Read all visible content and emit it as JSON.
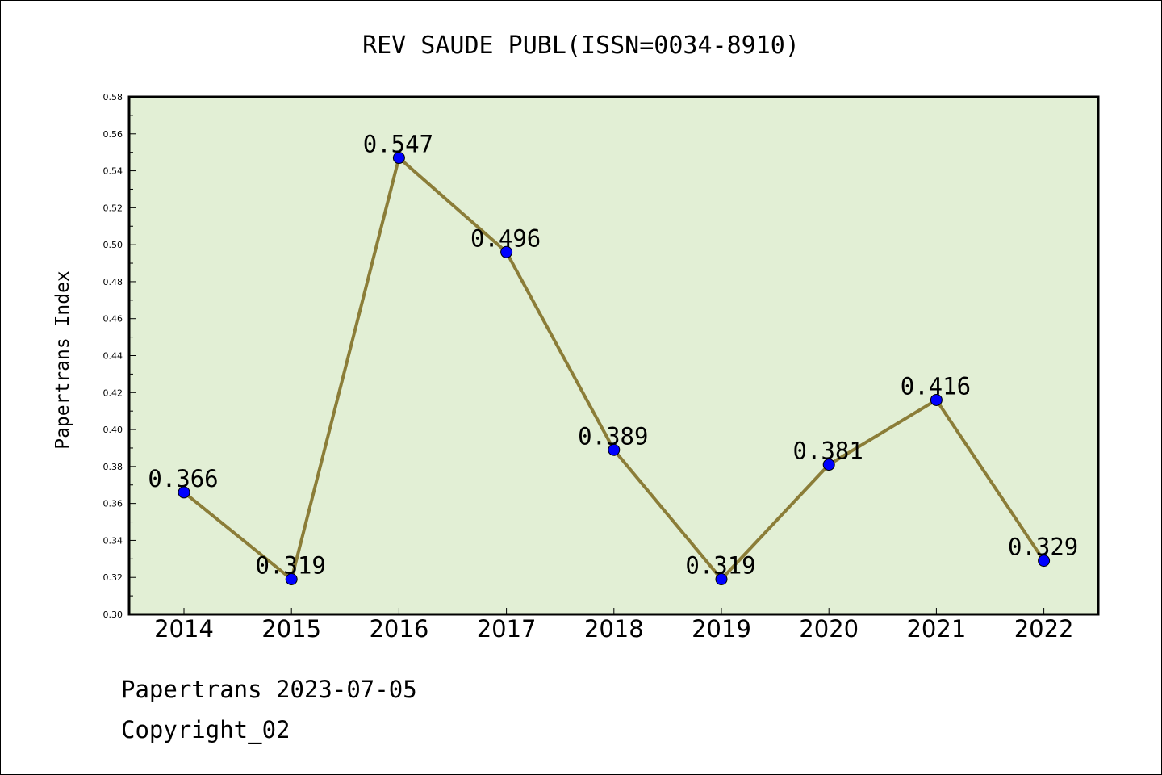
{
  "chart_data": {
    "type": "line",
    "title": "REV SAUDE PUBL(ISSN=0034-8910)",
    "xlabel": "",
    "ylabel": "Papertrans Index",
    "categories": [
      "2014",
      "2015",
      "2016",
      "2017",
      "2018",
      "2019",
      "2020",
      "2021",
      "2022"
    ],
    "series": [
      {
        "values": [
          0.366,
          0.319,
          0.547,
          0.496,
          0.389,
          0.319,
          0.381,
          0.416,
          0.329
        ]
      }
    ],
    "data_labels": [
      "0.366",
      "0.319",
      "0.547",
      "0.496",
      "0.389",
      "0.319",
      "0.381",
      "0.416",
      "0.329"
    ],
    "ylim": [
      0.3,
      0.58
    ],
    "yticks": [
      "0.30",
      "0.32",
      "0.34",
      "0.36",
      "0.38",
      "0.40",
      "0.42",
      "0.44",
      "0.46",
      "0.48",
      "0.50",
      "0.52",
      "0.54",
      "0.56",
      "0.58"
    ],
    "grid": false,
    "legend": "none",
    "colors": {
      "plot_background": "#e2efd5",
      "line": "#8b7d38",
      "marker": "#0000ff"
    }
  },
  "footer": {
    "line1": "Papertrans 2023-07-05",
    "line2": "Copyright_02"
  }
}
